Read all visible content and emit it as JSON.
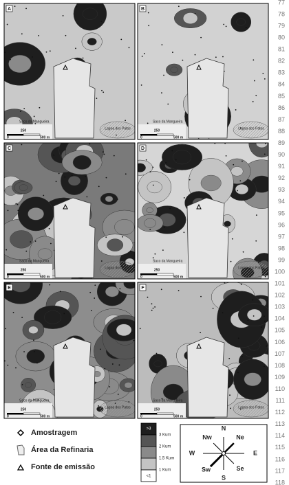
{
  "panels": [
    {
      "letter": "A",
      "bay": "Saco da Mangueira",
      "lake": "Lagoa dos Patos",
      "scale": [
        "0",
        "250",
        "500 m"
      ]
    },
    {
      "letter": "B",
      "bay": "Saco da Mangueira",
      "lake": "Lagoa dos Patos",
      "scale": [
        "0",
        "250",
        "500 m"
      ]
    },
    {
      "letter": "C",
      "bay": "Saco da Mangueira",
      "lake": "Lagoa dos Patos",
      "scale": [
        "0",
        "250",
        "500 m"
      ]
    },
    {
      "letter": "D",
      "bay": "Saco da Mangueira",
      "lake": "Lagoa dos Patos",
      "scale": [
        "0",
        "250",
        "500 m"
      ]
    },
    {
      "letter": "E",
      "bay": "Saco da Mangueira",
      "lake": "Lagoa dos Patos",
      "scale": [
        "0",
        "250",
        "500 m"
      ]
    },
    {
      "letter": "F",
      "bay": "Saco da Mangueira",
      "lake": "Lagoa dos Patos",
      "scale": [
        "0",
        "250",
        "500 m"
      ]
    }
  ],
  "legend": {
    "symbols": [
      "Amostragem",
      "Área da Refinaria",
      "Fonte de emissão"
    ],
    "scale": [
      ">3",
      "3 Kum",
      "2 Kum",
      "1,5 Kum",
      "1 Kum",
      "<1"
    ]
  },
  "compass": [
    "N",
    "Ne",
    "E",
    "Se",
    "S",
    "Sw",
    "W",
    "Nw"
  ],
  "line_numbers": [
    77,
    78,
    79,
    80,
    81,
    82,
    83,
    84,
    85,
    86,
    87,
    88,
    89,
    90,
    91,
    92,
    93,
    94,
    95,
    96,
    97,
    98,
    99,
    100,
    101,
    102,
    103,
    104,
    105,
    106,
    107,
    108,
    109,
    110,
    111,
    112,
    113,
    114,
    115,
    116,
    117,
    118
  ]
}
